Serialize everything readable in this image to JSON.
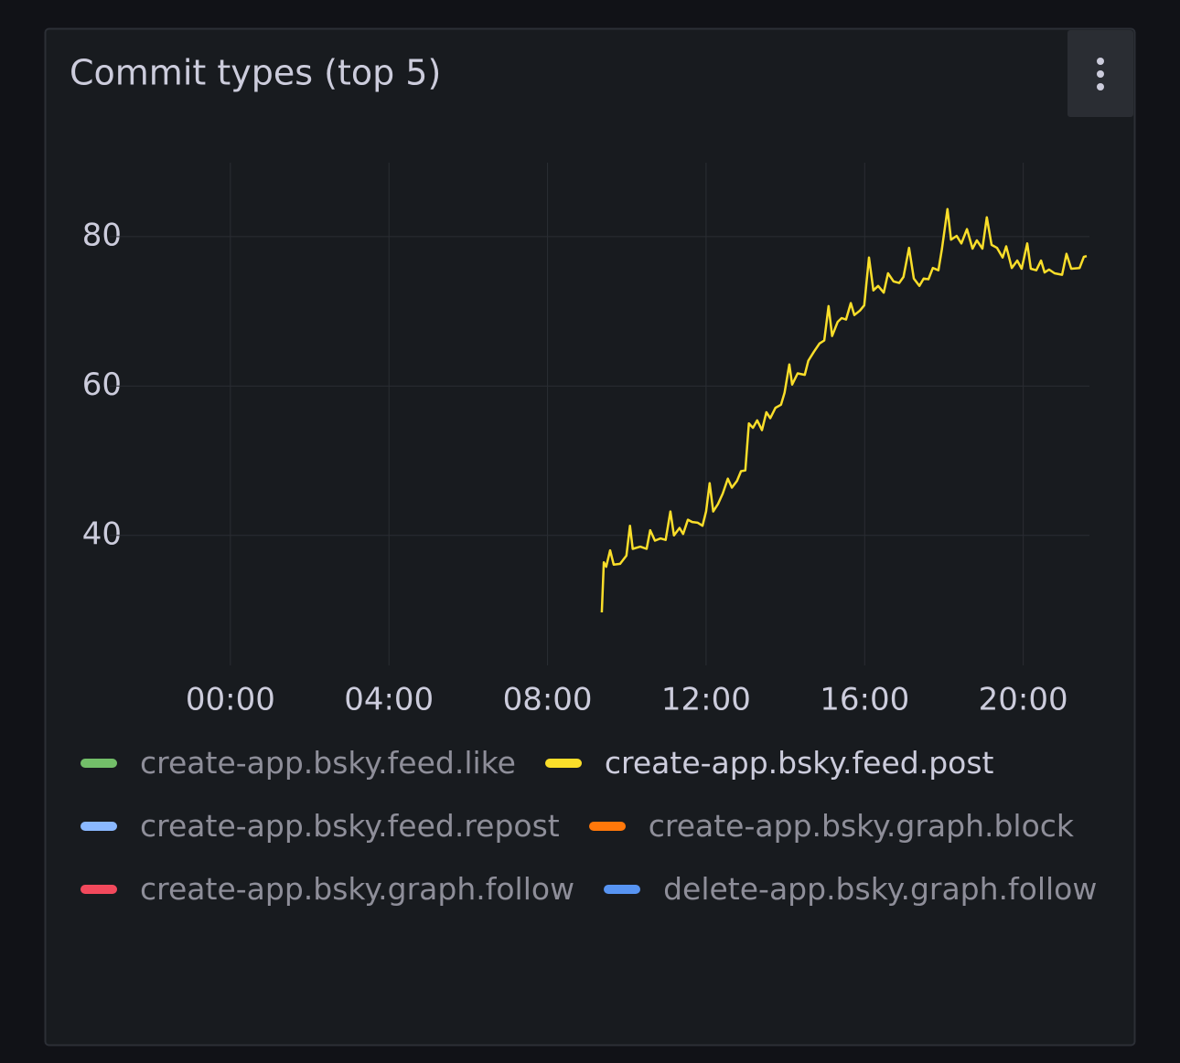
{
  "chart_data": {
    "type": "line",
    "title": "Commit types (top 5)",
    "xlim": [
      -2.35,
      21.67
    ],
    "ylim": [
      22.6,
      89.9
    ],
    "xticks": [
      {
        "value": 0,
        "label": "00:00"
      },
      {
        "value": 4,
        "label": "04:00"
      },
      {
        "value": 8,
        "label": "08:00"
      },
      {
        "value": 12,
        "label": "12:00"
      },
      {
        "value": 16,
        "label": "16:00"
      },
      {
        "value": 20,
        "label": "20:00"
      }
    ],
    "yticks": [
      40,
      60,
      80
    ],
    "grid": true,
    "x": [
      9.37,
      9.42,
      9.48,
      9.58,
      9.67,
      9.83,
      9.99,
      10.08,
      10.15,
      10.34,
      10.5,
      10.59,
      10.71,
      10.85,
      10.98,
      11.1,
      11.19,
      11.33,
      11.42,
      11.54,
      11.65,
      11.79,
      11.91,
      12.0,
      12.09,
      12.18,
      12.3,
      12.42,
      12.55,
      12.65,
      12.78,
      12.88,
      12.99,
      13.08,
      13.18,
      13.29,
      13.41,
      13.52,
      13.62,
      13.75,
      13.89,
      13.98,
      14.1,
      14.17,
      14.31,
      14.49,
      14.58,
      14.72,
      14.86,
      14.98,
      15.09,
      15.18,
      15.32,
      15.42,
      15.53,
      15.65,
      15.74,
      15.88,
      15.99,
      16.11,
      16.22,
      16.34,
      16.48,
      16.59,
      16.73,
      16.87,
      16.98,
      17.12,
      17.24,
      17.38,
      17.49,
      17.61,
      17.72,
      17.86,
      17.95,
      18.09,
      18.18,
      18.32,
      18.44,
      18.58,
      18.72,
      18.83,
      18.97,
      19.08,
      19.2,
      19.34,
      19.48,
      19.57,
      19.71,
      19.85,
      19.96,
      20.1,
      20.19,
      20.33,
      20.45,
      20.54,
      20.65,
      20.79,
      20.98,
      21.09,
      21.21,
      21.42,
      21.53,
      21.6
    ],
    "series": [
      {
        "name": "create-app.bsky.feed.like",
        "color": "#73bf69",
        "hidden": true
      },
      {
        "name": "create-app.bsky.feed.post",
        "color": "#fade2a",
        "hidden": false,
        "values": [
          29.7,
          36.4,
          35.8,
          38.0,
          36.1,
          36.2,
          37.3,
          41.3,
          38.2,
          38.5,
          38.2,
          40.7,
          39.3,
          39.6,
          39.4,
          43.2,
          40.0,
          41.0,
          40.2,
          42.1,
          41.8,
          41.7,
          41.3,
          43.2,
          47.0,
          43.2,
          44.2,
          45.6,
          47.6,
          46.4,
          47.3,
          48.6,
          48.7,
          55.0,
          54.4,
          55.4,
          54.1,
          56.5,
          55.7,
          57.1,
          57.5,
          59.1,
          62.9,
          60.2,
          61.7,
          61.5,
          63.4,
          64.6,
          65.7,
          66.1,
          70.7,
          66.7,
          68.6,
          69.1,
          68.9,
          71.1,
          69.5,
          70.1,
          70.8,
          77.2,
          72.8,
          73.4,
          72.5,
          75.1,
          74.0,
          73.8,
          74.6,
          78.5,
          74.4,
          73.4,
          74.4,
          74.3,
          75.8,
          75.5,
          78.4,
          83.7,
          79.6,
          80.1,
          79.1,
          81.0,
          78.4,
          79.5,
          78.4,
          82.6,
          78.9,
          78.5,
          77.2,
          78.7,
          75.8,
          76.8,
          75.7,
          79.1,
          75.7,
          75.5,
          76.8,
          75.2,
          75.6,
          75.1,
          74.9,
          77.7,
          75.7,
          75.8,
          77.3,
          77.4
        ]
      },
      {
        "name": "create-app.bsky.feed.repost",
        "color": "#8ab8ff",
        "hidden": true
      },
      {
        "name": "create-app.bsky.graph.block",
        "color": "#ff780a",
        "hidden": true
      },
      {
        "name": "create-app.bsky.graph.follow",
        "color": "#f2495c",
        "hidden": true
      },
      {
        "name": "delete-app.bsky.graph.follow",
        "color": "#5794f2",
        "hidden": true
      }
    ]
  }
}
